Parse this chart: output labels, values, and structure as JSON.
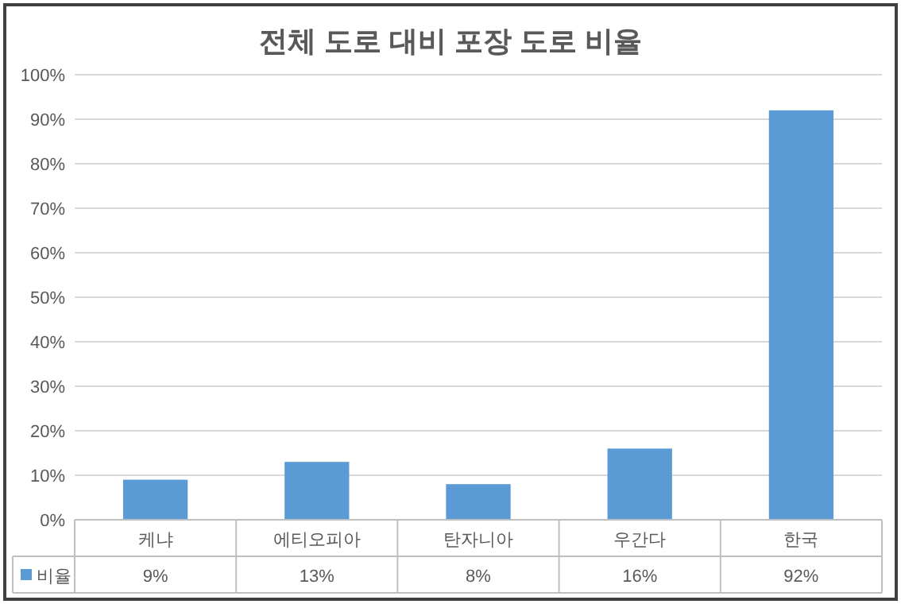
{
  "chart_data": {
    "type": "bar",
    "title": "전체 도로 대비 포장 도로 비율",
    "categories": [
      "케냐",
      "에티오피아",
      "탄자니아",
      "우간다",
      "한국"
    ],
    "series": [
      {
        "name": "비율",
        "color": "#5b9bd5",
        "values": [
          9,
          13,
          8,
          16,
          92
        ],
        "value_labels": [
          "9%",
          "13%",
          "8%",
          "16%",
          "92%"
        ]
      }
    ],
    "ylim": [
      0,
      100
    ],
    "yticks": [
      {
        "value": 0,
        "label": "0%"
      },
      {
        "value": 10,
        "label": "10%"
      },
      {
        "value": 20,
        "label": "20%"
      },
      {
        "value": 30,
        "label": "30%"
      },
      {
        "value": 40,
        "label": "40%"
      },
      {
        "value": 50,
        "label": "50%"
      },
      {
        "value": 60,
        "label": "60%"
      },
      {
        "value": 70,
        "label": "70%"
      },
      {
        "value": 80,
        "label": "80%"
      },
      {
        "value": 90,
        "label": "90%"
      },
      {
        "value": 100,
        "label": "100%"
      }
    ],
    "grid": "y",
    "legend": "bottom"
  }
}
